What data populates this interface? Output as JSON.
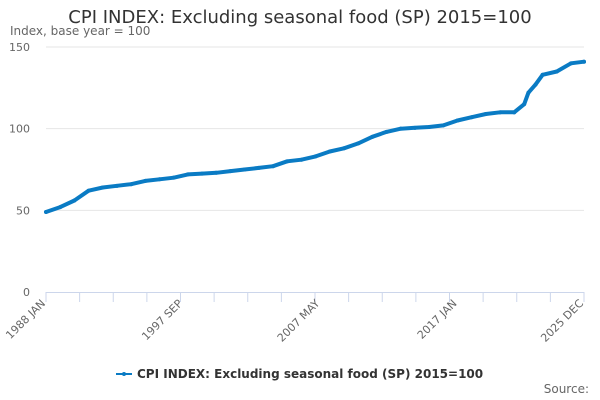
{
  "chart_data": {
    "type": "line",
    "title": "CPI INDEX: Excluding seasonal food (SP) 2015=100",
    "ylabel": "Index, base year = 100",
    "xlabel": "",
    "ylim": [
      0,
      150
    ],
    "yticks": [
      0,
      50,
      100,
      150
    ],
    "xrange": [
      1988.0,
      2025.917
    ],
    "xtick_labels": [
      {
        "label": "1988 JAN",
        "x": 1988.0
      },
      {
        "label": "1997 SEP",
        "x": 1997.667
      },
      {
        "label": "2007 MAY",
        "x": 2007.333
      },
      {
        "label": "2017 JAN",
        "x": 2017.0
      },
      {
        "label": "2025 DEC",
        "x": 2025.917
      }
    ],
    "grid": true,
    "legend_position": "bottom",
    "series": [
      {
        "name": "CPI INDEX: Excluding seasonal food (SP) 2015=100",
        "color": "#0a7bc4",
        "x": [
          1988,
          1989,
          1990,
          1991,
          1992,
          1993,
          1994,
          1995,
          1996,
          1997,
          1998,
          1999,
          2000,
          2001,
          2002,
          2003,
          2004,
          2005,
          2006,
          2007,
          2008,
          2009,
          2010,
          2011,
          2012,
          2013,
          2014,
          2015,
          2016,
          2017,
          2018,
          2019,
          2020,
          2021,
          2021.7,
          2022,
          2022.5,
          2023,
          2024,
          2025,
          2025.917
        ],
        "values": [
          49,
          52,
          56,
          62,
          64,
          65,
          66,
          68,
          69,
          70,
          72,
          72.5,
          73,
          74,
          75,
          76,
          77,
          80,
          81,
          83,
          86,
          88,
          91,
          95,
          98,
          100,
          100.5,
          101,
          102,
          105,
          107,
          109,
          110,
          110,
          115,
          122,
          127,
          133,
          135,
          140,
          141
        ]
      }
    ]
  },
  "source_label": "Source:"
}
